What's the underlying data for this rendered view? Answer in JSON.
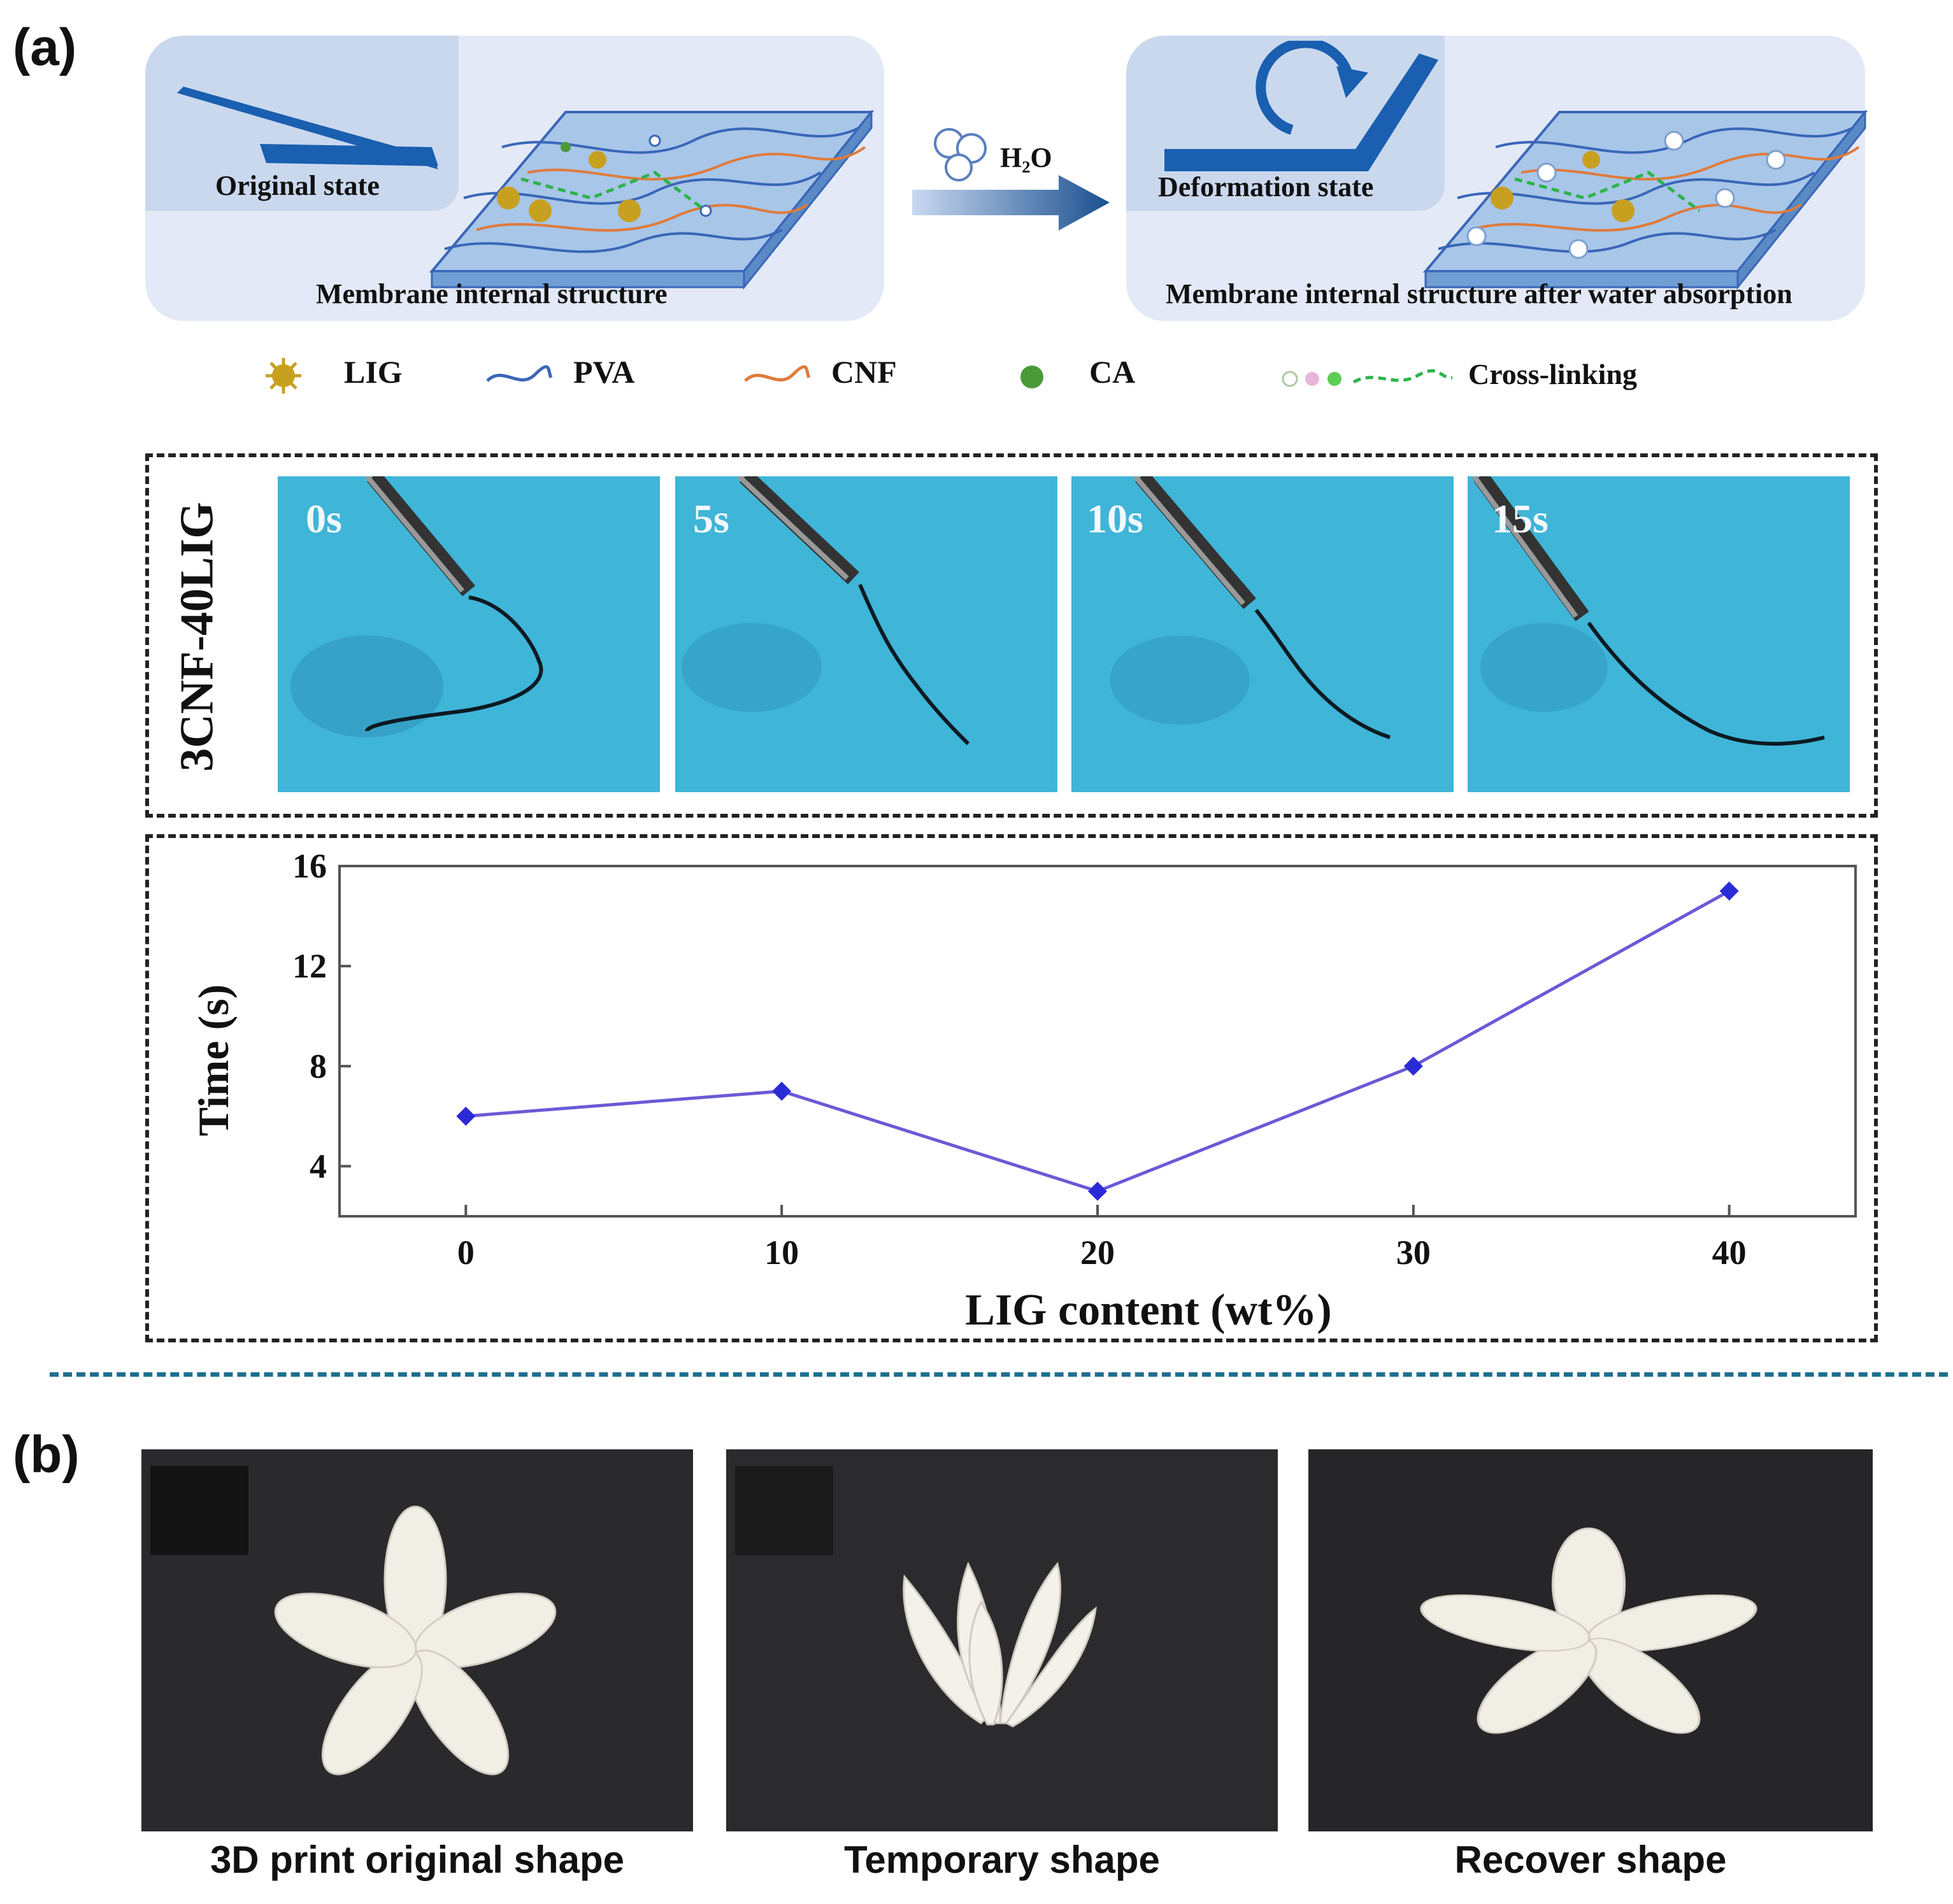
{
  "panel_a": {
    "label": "(a)",
    "schematic": {
      "original_caption": "Original state",
      "membrane_caption": "Membrane internal structure",
      "water_label": "H₂O",
      "deformation_caption": "Deformation state",
      "membrane_after_caption": "Membrane internal structure after water absorption"
    },
    "legend": [
      {
        "key": "lig",
        "label": "LIG",
        "color": "#c8a020",
        "icon": "lig-particle-icon"
      },
      {
        "key": "pva",
        "label": "PVA",
        "color": "#3a66b8",
        "icon": "wavy-line-icon"
      },
      {
        "key": "cnf",
        "label": "CNF",
        "color": "#e07a3a",
        "icon": "wavy-line-icon"
      },
      {
        "key": "ca",
        "label": "CA",
        "color": "#4a9a3a",
        "icon": "dot-icon"
      },
      {
        "key": "xl",
        "label": "Cross-linking",
        "color": "#2db34a",
        "icon": "dashed-line-icon"
      }
    ],
    "timelapse": {
      "sample_label": "3CNF-40LIG",
      "frames": [
        "0s",
        "5s",
        "10s",
        "15s"
      ]
    }
  },
  "chart_data": {
    "type": "line",
    "x": [
      0,
      10,
      20,
      30,
      40
    ],
    "series": [
      {
        "values": [
          6,
          7,
          3,
          8,
          15
        ]
      }
    ],
    "xlabel": "LIG content  (wt%)",
    "ylabel": "Time (s)",
    "xticks": [
      "0",
      "10",
      "20",
      "30",
      "40"
    ],
    "yticks": [
      "4",
      "8",
      "12",
      "16"
    ],
    "xlim": [
      -4,
      44
    ],
    "ylim": [
      2,
      16
    ],
    "grid": false,
    "color": "#2b2bd6"
  },
  "panel_b": {
    "label": "(b)",
    "captions": [
      "3D print original shape",
      "Temporary shape",
      "Recover shape"
    ]
  },
  "colors": {
    "schematic_bg": "#e3e9f6",
    "arrow_blue": "#1a4f8f",
    "water_blue": "#3fb5d8",
    "separator": "#1f6f8f"
  }
}
